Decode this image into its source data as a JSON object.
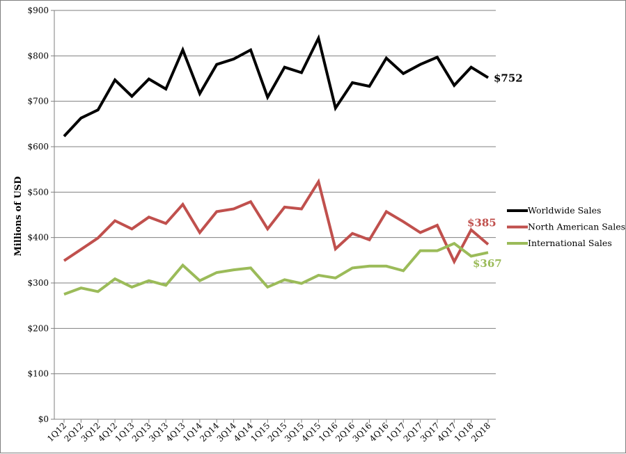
{
  "chart_data": {
    "type": "line",
    "title": "",
    "xlabel": "",
    "ylabel": "Millions of USD",
    "ylim": [
      0,
      900
    ],
    "yticks": [
      0,
      100,
      200,
      300,
      400,
      500,
      600,
      700,
      800,
      900
    ],
    "ytick_labels": [
      "$0",
      "$100",
      "$200",
      "$300",
      "$400",
      "$500",
      "$600",
      "$700",
      "$800",
      "$900"
    ],
    "grid": "horizontal",
    "legend_position": "right",
    "categories": [
      "1Q12",
      "2Q12",
      "3Q12",
      "4Q12",
      "1Q13",
      "2Q13",
      "3Q13",
      "4Q13",
      "1Q14",
      "2Q14",
      "3Q14",
      "4Q14",
      "1Q15",
      "2Q15",
      "3Q15",
      "4Q15",
      "1Q16",
      "2Q16",
      "3Q16",
      "4Q16",
      "1Q17",
      "2Q17",
      "3Q17",
      "4Q17",
      "1Q18",
      "2Q18"
    ],
    "series": [
      {
        "name": "Worldwide Sales",
        "color": "#000000",
        "values": [
          623,
          663,
          681,
          747,
          711,
          749,
          727,
          813,
          717,
          781,
          793,
          813,
          709,
          775,
          763,
          839,
          685,
          741,
          733,
          795,
          761,
          781,
          797,
          735,
          775,
          752
        ],
        "end_label": "$752"
      },
      {
        "name": "North American Sales",
        "color": "#c0504d",
        "values": [
          349,
          374,
          399,
          437,
          419,
          445,
          431,
          473,
          411,
          457,
          463,
          479,
          419,
          467,
          463,
          523,
          375,
          409,
          395,
          457,
          435,
          411,
          427,
          347,
          417,
          385
        ],
        "end_label": "$385"
      },
      {
        "name": "International Sales",
        "color": "#9bbb59",
        "values": [
          275,
          289,
          281,
          309,
          291,
          305,
          295,
          339,
          305,
          323,
          329,
          333,
          291,
          307,
          299,
          317,
          311,
          333,
          337,
          337,
          327,
          371,
          371,
          387,
          359,
          367
        ],
        "end_label": "$367"
      }
    ]
  }
}
